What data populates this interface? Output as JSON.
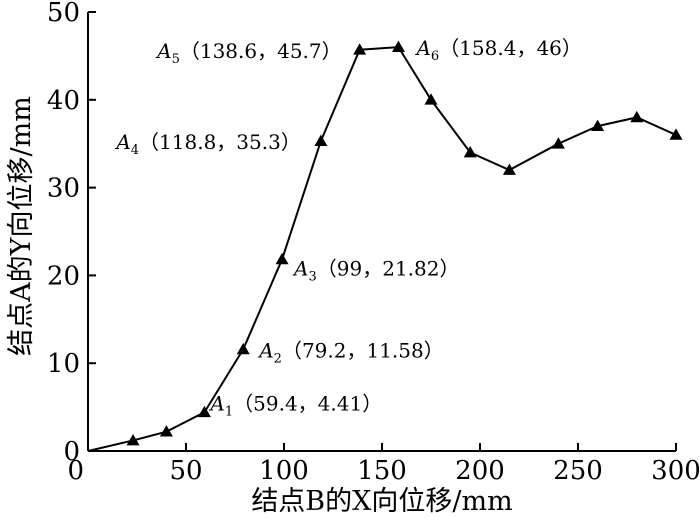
{
  "chart_data": {
    "type": "line",
    "xlabel": "结点B的X向位移/mm",
    "ylabel": "结点A的Y向位移/mm",
    "xlim": [
      0,
      300
    ],
    "ylim": [
      0,
      50
    ],
    "xticks": [
      "0",
      "50",
      "100",
      "150",
      "200",
      "250",
      "300"
    ],
    "yticks": [
      "0",
      "10",
      "20",
      "30",
      "40",
      "50"
    ],
    "grid": false,
    "marker": "triangle",
    "line_color": "#000000",
    "x": [
      0,
      23,
      40,
      59.4,
      79.2,
      99,
      118.8,
      138.6,
      158.4,
      175,
      195,
      215,
      240,
      260,
      280,
      300
    ],
    "y": [
      0,
      1.2,
      2.2,
      4.41,
      11.58,
      21.82,
      35.3,
      45.7,
      46,
      40,
      34,
      32,
      35,
      37,
      38,
      36
    ],
    "annotations": [
      {
        "name": "A",
        "sub": "1",
        "coords": "（59.4，4.41）",
        "point": 3
      },
      {
        "name": "A",
        "sub": "2",
        "coords": "（79.2，11.58）",
        "point": 4
      },
      {
        "name": "A",
        "sub": "3",
        "coords": "（99，21.82）",
        "point": 5
      },
      {
        "name": "A",
        "sub": "4",
        "coords": "（118.8，35.3）",
        "point": 6
      },
      {
        "name": "A",
        "sub": "5",
        "coords": "（138.6，45.7）",
        "point": 7
      },
      {
        "name": "A",
        "sub": "6",
        "coords": "（158.4，46）",
        "point": 8
      }
    ]
  }
}
